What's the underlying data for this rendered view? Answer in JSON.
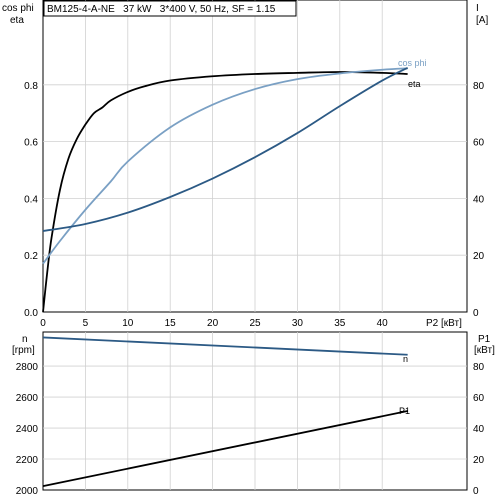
{
  "chart_data": [
    {
      "type": "line",
      "title": "BM125-4-A-NE   37 kW   3*400 V, 50 Hz, SF = 1.15",
      "ylabel_left_line1": "cos phi",
      "ylabel_left_line2": "eta",
      "ylabel_right_line1": "I",
      "ylabel_right_line2": "[A]",
      "xlabel": "P2 [кВт]",
      "xlim": [
        0,
        50
      ],
      "ylim_left": [
        0,
        1.0
      ],
      "ylim_right": [
        0,
        100
      ],
      "xticks": [
        0,
        5,
        10,
        15,
        20,
        25,
        30,
        35,
        40
      ],
      "xtick_labels": [
        "0",
        "5",
        "10",
        "15",
        "20",
        "25",
        "30",
        "35",
        "40"
      ],
      "yticks_left": [
        0,
        0.2,
        0.4,
        0.6,
        0.8
      ],
      "ytick_labels_left": [
        "0.0",
        "0.2",
        "0.4",
        "0.6",
        "0.8"
      ],
      "yticks_right": [
        0,
        20,
        40,
        60,
        80
      ],
      "ytick_labels_right": [
        "0",
        "20",
        "40",
        "60",
        "80"
      ],
      "grid": true,
      "series": [
        {
          "name": "eta",
          "color": "#000000",
          "axis": "left",
          "x": [
            0,
            0.5,
            1,
            2,
            3,
            4,
            5,
            6,
            7,
            8,
            10,
            12,
            15,
            20,
            25,
            30,
            35,
            40,
            43
          ],
          "y": [
            0,
            0.14,
            0.26,
            0.43,
            0.54,
            0.61,
            0.66,
            0.7,
            0.72,
            0.745,
            0.775,
            0.795,
            0.815,
            0.83,
            0.838,
            0.842,
            0.845,
            0.842,
            0.838
          ]
        },
        {
          "name": "cos phi",
          "color": "#7aa0c4",
          "axis": "left",
          "x": [
            0,
            2,
            5,
            8,
            10,
            15,
            20,
            25,
            30,
            35,
            40,
            43
          ],
          "y": [
            0.17,
            0.25,
            0.36,
            0.46,
            0.53,
            0.65,
            0.73,
            0.785,
            0.82,
            0.84,
            0.853,
            0.858
          ]
        },
        {
          "name": "I",
          "color": "#2c5a85",
          "axis": "right",
          "x": [
            0,
            5,
            10,
            15,
            20,
            25,
            30,
            35,
            40,
            43
          ],
          "y": [
            28.5,
            31,
            35,
            40.5,
            47,
            54.5,
            63,
            72.5,
            81.5,
            86
          ]
        }
      ]
    },
    {
      "type": "line",
      "ylabel_left_line1": "n",
      "ylabel_left_line2": "[rpm]",
      "ylabel_right_line1": "P1",
      "ylabel_right_line2": "[кВт]",
      "xlim": [
        0,
        50
      ],
      "ylim_left": [
        2000,
        3020
      ],
      "ylim_right": [
        0,
        102
      ],
      "yticks_left": [
        2000,
        2200,
        2400,
        2600,
        2800
      ],
      "ytick_labels_left": [
        "2000",
        "2200",
        "2400",
        "2600",
        "2800"
      ],
      "yticks_right": [
        0,
        20,
        40,
        60,
        80
      ],
      "ytick_labels_right": [
        "0",
        "20",
        "40",
        "60",
        "80"
      ],
      "grid": true,
      "series": [
        {
          "name": "n",
          "color": "#2c5a85",
          "axis": "left",
          "x": [
            0,
            43
          ],
          "y": [
            2985,
            2873
          ]
        },
        {
          "name": "P1",
          "color": "#000000",
          "axis": "right",
          "x": [
            0,
            43
          ],
          "y": [
            2.5,
            51
          ]
        }
      ]
    }
  ]
}
